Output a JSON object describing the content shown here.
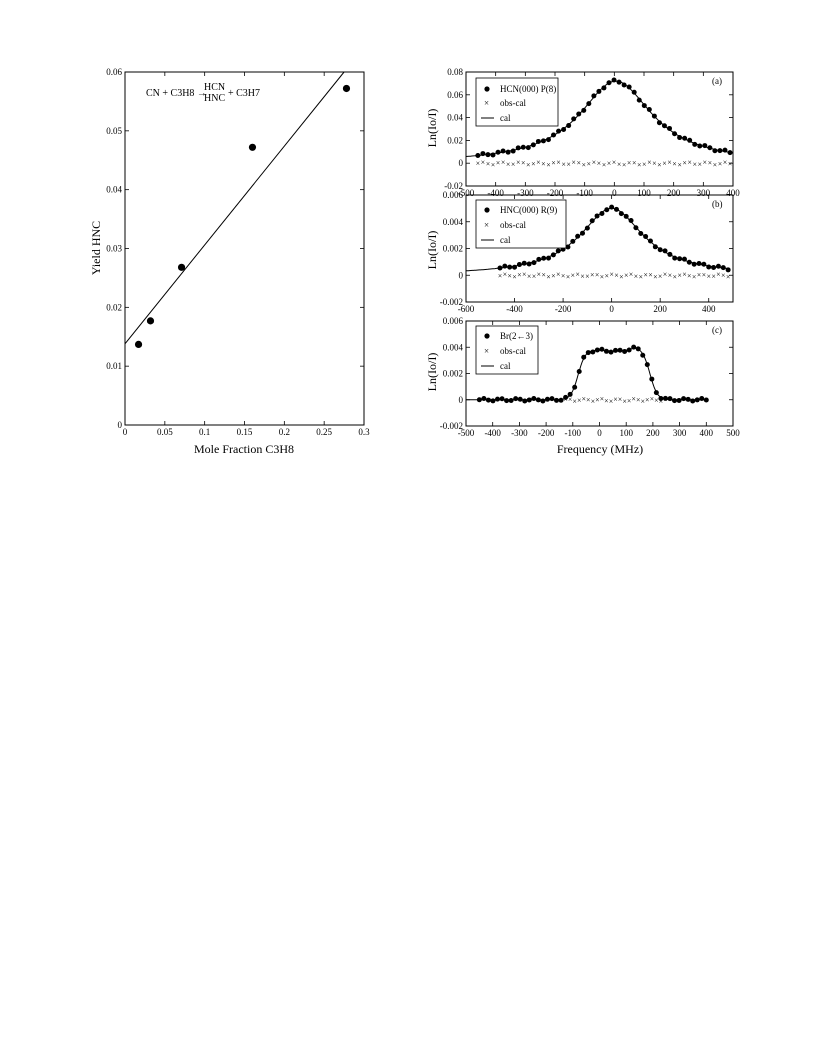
{
  "chart_data": [
    {
      "type": "scatter",
      "xlabel": "Mole Fraction C3H8",
      "ylabel": "Yield HNC",
      "xlim": [
        0,
        0.3
      ],
      "ylim": [
        0,
        0.06
      ],
      "xticks": [
        "0",
        "0.05",
        "0.1",
        "0.15",
        "0.2",
        "0.25",
        "0.3"
      ],
      "yticks": [
        "0",
        "0.01",
        "0.02",
        "0.03",
        "0.04",
        "0.05",
        "0.06"
      ],
      "annotation": {
        "left": "CN + C3H8 →",
        "top": "HCN",
        "bottom": "HNC",
        "right": "+ C3H7"
      },
      "points": [
        [
          0.017,
          0.0137
        ],
        [
          0.032,
          0.0177
        ],
        [
          0.071,
          0.0268
        ],
        [
          0.16,
          0.0472
        ],
        [
          0.278,
          0.0572
        ]
      ],
      "fit_line": [
        [
          0,
          0.0138
        ],
        [
          0.275,
          0.06
        ]
      ],
      "grid": false
    },
    {
      "type": "scatter",
      "panel_label": "(a)",
      "ylabel": "Ln(Io/I)",
      "xlim": [
        -500,
        400
      ],
      "ylim": [
        -0.02,
        0.08
      ],
      "xticks": [
        "-500",
        "-400",
        "-300",
        "-200",
        "-100",
        "0",
        "100",
        "200",
        "300",
        "400"
      ],
      "yticks": [
        "-0.02",
        "0",
        "0.02",
        "0.04",
        "0.06",
        "0.08"
      ],
      "legend": [
        "HCN(000) P(8)",
        "obs-cal",
        "cal"
      ],
      "legend_position": "top-left",
      "model": {
        "peak": 0.072,
        "center": 5,
        "fwhm": 300,
        "x_from": -460,
        "x_to": 395,
        "step": 17,
        "resid_amp": 0.0015
      },
      "grid": false
    },
    {
      "type": "scatter",
      "panel_label": "(b)",
      "ylabel": "Ln(Io/I)",
      "xlim": [
        -600,
        500
      ],
      "ylim": [
        -0.002,
        0.006
      ],
      "xticks": [
        "-600",
        "-400",
        "-200",
        "0",
        "200",
        "400"
      ],
      "yticks": [
        "-0.002",
        "0",
        "0.002",
        "0.004",
        "0.006"
      ],
      "legend": [
        "HNC(000) R(9)",
        "obs-cal",
        "cal"
      ],
      "legend_position": "top-left",
      "model": {
        "peak": 0.005,
        "center": 0,
        "fwhm": 320,
        "x_from": -460,
        "x_to": 480,
        "step": 20,
        "resid_amp": 0.00012
      },
      "grid": false
    },
    {
      "type": "scatter",
      "panel_label": "(c)",
      "xlabel": "Frequency (MHz)",
      "ylabel": "Ln(Io/I)",
      "xlim": [
        -500,
        500
      ],
      "ylim": [
        -0.002,
        0.006
      ],
      "xticks": [
        "-500",
        "-400",
        "-300",
        "-200",
        "-100",
        "0",
        "100",
        "200",
        "300",
        "400",
        "500"
      ],
      "yticks": [
        "-0.002",
        "0",
        "0.002",
        "0.004",
        "0.006"
      ],
      "legend": [
        "Br(2←3)",
        "obs-cal",
        "cal"
      ],
      "legend_position": "top-left",
      "model": {
        "plateau": 0.0038,
        "dip": 0.0037,
        "hump": 0.004,
        "edge_lo": -80,
        "edge_hi": 190,
        "width": 40,
        "x_from": -450,
        "x_to": 400,
        "step": 17,
        "resid_amp": 0.00012
      },
      "grid": false
    }
  ]
}
